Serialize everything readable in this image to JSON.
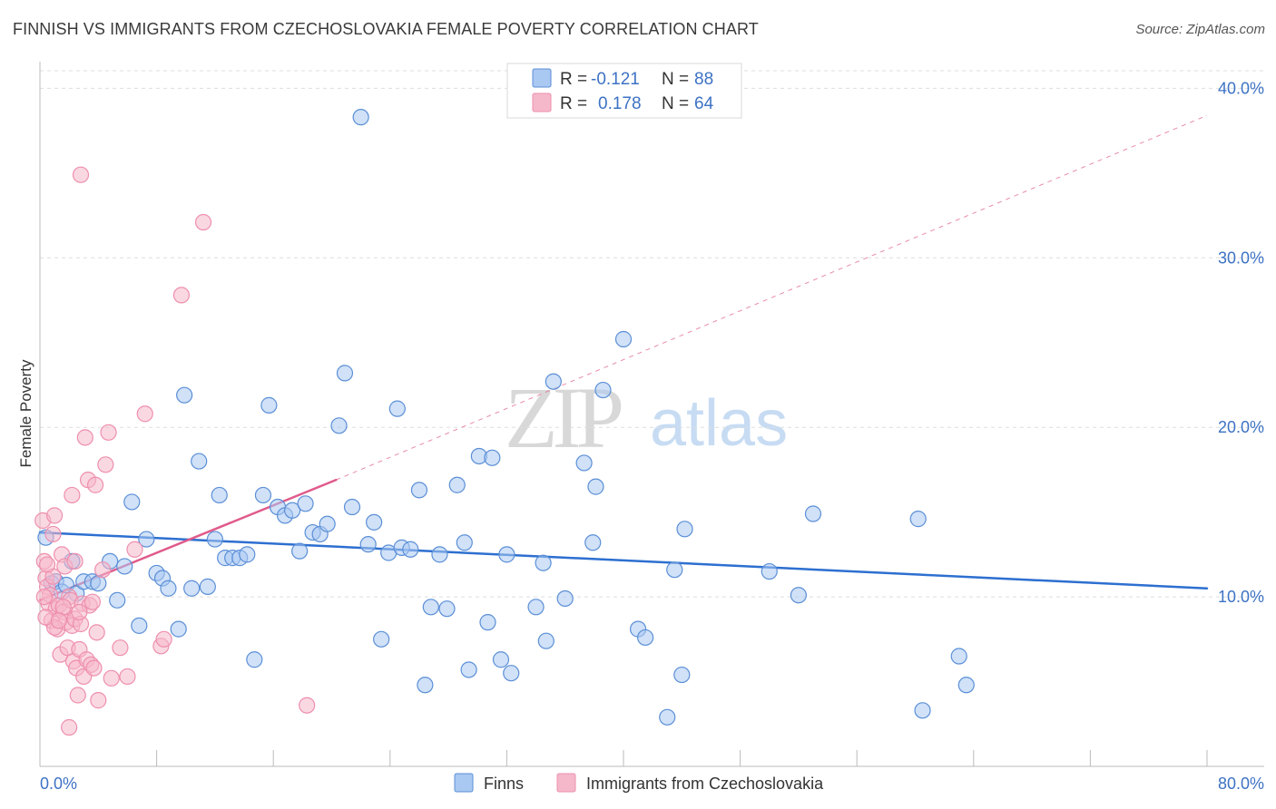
{
  "title": "FINNISH VS IMMIGRANTS FROM CZECHOSLOVAKIA FEMALE POVERTY CORRELATION CHART",
  "source": "Source: ZipAtlas.com",
  "watermark": {
    "zip": "ZIP",
    "atlas": "atlas"
  },
  "legend": {
    "rows": [
      {
        "r_label": "R = ",
        "r_value": "-0.121",
        "n_label": "N = ",
        "n_value": "88",
        "color": "#a9c8f2"
      },
      {
        "r_label": "R = ",
        "r_value": "0.178",
        "n_label": "N = ",
        "n_value": "64",
        "color": "#f5b8cb"
      }
    ]
  },
  "bottom_legend": [
    "Finns",
    "Immigrants from Czechoslovakia"
  ],
  "chart_data": {
    "type": "scatter",
    "title": "FINNISH VS IMMIGRANTS FROM CZECHOSLOVAKIA FEMALE POVERTY CORRELATION CHART",
    "xlabel": "",
    "ylabel": "Female Poverty",
    "xlim": [
      0,
      80
    ],
    "ylim": [
      0,
      42
    ],
    "x_tick_labels": [
      "0.0%",
      "80.0%"
    ],
    "y_ticks": [
      10,
      20,
      30,
      40
    ],
    "y_tick_labels": [
      "10.0%",
      "20.0%",
      "30.0%",
      "40.0%"
    ],
    "grid": "horizontal dashed",
    "series": [
      {
        "name": "Finns",
        "color": "#5b8fd6",
        "fill": "#a9c8f2",
        "trend": {
          "x": [
            0,
            80
          ],
          "y": [
            13.8,
            10.5
          ],
          "color": "#2d6fd0"
        },
        "points": [
          [
            0.4,
            13.5
          ],
          [
            0.8,
            10.8
          ],
          [
            1.1,
            10.9
          ],
          [
            1.5,
            10.3
          ],
          [
            1.8,
            10.7
          ],
          [
            2.2,
            12.1
          ],
          [
            2.5,
            10.2
          ],
          [
            3.0,
            10.9
          ],
          [
            3.6,
            10.9
          ],
          [
            4.0,
            10.8
          ],
          [
            4.8,
            12.1
          ],
          [
            5.3,
            9.8
          ],
          [
            5.8,
            11.8
          ],
          [
            6.3,
            15.6
          ],
          [
            6.8,
            8.3
          ],
          [
            7.3,
            13.4
          ],
          [
            8.0,
            11.4
          ],
          [
            8.4,
            11.1
          ],
          [
            8.8,
            10.5
          ],
          [
            9.5,
            8.1
          ],
          [
            9.9,
            21.9
          ],
          [
            10.4,
            10.5
          ],
          [
            10.9,
            18.0
          ],
          [
            11.5,
            10.6
          ],
          [
            12.0,
            13.4
          ],
          [
            12.3,
            16.0
          ],
          [
            12.7,
            12.3
          ],
          [
            13.2,
            12.3
          ],
          [
            13.7,
            12.3
          ],
          [
            14.2,
            12.5
          ],
          [
            14.7,
            6.3
          ],
          [
            15.3,
            16.0
          ],
          [
            15.7,
            21.3
          ],
          [
            16.3,
            15.3
          ],
          [
            16.8,
            14.8
          ],
          [
            17.3,
            15.1
          ],
          [
            17.8,
            12.7
          ],
          [
            18.2,
            15.5
          ],
          [
            18.7,
            13.8
          ],
          [
            19.2,
            13.7
          ],
          [
            19.7,
            14.3
          ],
          [
            20.5,
            20.1
          ],
          [
            20.9,
            23.2
          ],
          [
            21.4,
            15.3
          ],
          [
            22.0,
            38.3
          ],
          [
            22.5,
            13.1
          ],
          [
            22.9,
            14.4
          ],
          [
            23.4,
            7.5
          ],
          [
            23.9,
            12.6
          ],
          [
            24.5,
            21.1
          ],
          [
            24.8,
            12.9
          ],
          [
            25.4,
            12.8
          ],
          [
            26.0,
            16.3
          ],
          [
            26.4,
            4.8
          ],
          [
            26.8,
            9.4
          ],
          [
            27.4,
            12.5
          ],
          [
            27.9,
            9.3
          ],
          [
            28.6,
            16.6
          ],
          [
            29.1,
            13.2
          ],
          [
            29.4,
            5.7
          ],
          [
            30.1,
            18.3
          ],
          [
            30.7,
            8.5
          ],
          [
            31.0,
            18.2
          ],
          [
            31.6,
            6.3
          ],
          [
            32.0,
            12.5
          ],
          [
            32.3,
            5.5
          ],
          [
            34.0,
            9.4
          ],
          [
            34.5,
            12.0
          ],
          [
            34.7,
            7.4
          ],
          [
            35.2,
            22.7
          ],
          [
            36.0,
            9.9
          ],
          [
            37.3,
            17.9
          ],
          [
            37.9,
            13.2
          ],
          [
            38.1,
            16.5
          ],
          [
            38.6,
            22.2
          ],
          [
            40.0,
            25.2
          ],
          [
            41.0,
            8.1
          ],
          [
            41.5,
            7.6
          ],
          [
            43.5,
            11.6
          ],
          [
            44.0,
            5.4
          ],
          [
            44.2,
            14.0
          ],
          [
            50.0,
            11.5
          ],
          [
            52.0,
            10.1
          ],
          [
            53.0,
            14.9
          ],
          [
            60.2,
            14.6
          ],
          [
            60.5,
            3.3
          ],
          [
            63.0,
            6.5
          ],
          [
            63.5,
            4.8
          ],
          [
            43.0,
            2.9
          ]
        ]
      },
      {
        "name": "Immigrants from Czechoslovakia",
        "color": "#ee8fae",
        "fill": "#f5b8cb",
        "trend": {
          "x": [
            0,
            20.3
          ],
          "y": [
            9.8,
            16.9
          ],
          "color": "#e05a8b",
          "dashed_extension_to": [
            80,
            38.4
          ]
        },
        "points": [
          [
            0.2,
            14.5
          ],
          [
            0.3,
            12.1
          ],
          [
            0.4,
            11.1
          ],
          [
            0.5,
            10.6
          ],
          [
            0.6,
            9.6
          ],
          [
            0.7,
            10.1
          ],
          [
            0.8,
            8.6
          ],
          [
            0.9,
            11.2
          ],
          [
            1.0,
            14.8
          ],
          [
            1.1,
            9.3
          ],
          [
            1.2,
            8.1
          ],
          [
            1.3,
            9.5
          ],
          [
            1.4,
            6.6
          ],
          [
            1.5,
            12.5
          ],
          [
            1.6,
            9.1
          ],
          [
            1.7,
            11.8
          ],
          [
            1.8,
            8.5
          ],
          [
            1.9,
            7.0
          ],
          [
            2.0,
            10.0
          ],
          [
            2.1,
            9.8
          ],
          [
            2.2,
            8.3
          ],
          [
            2.3,
            6.2
          ],
          [
            2.4,
            8.7
          ],
          [
            2.5,
            5.8
          ],
          [
            2.6,
            4.2
          ],
          [
            2.7,
            6.9
          ],
          [
            2.8,
            8.4
          ],
          [
            2.9,
            9.6
          ],
          [
            3.0,
            5.3
          ],
          [
            3.1,
            19.4
          ],
          [
            3.2,
            6.3
          ],
          [
            3.3,
            16.9
          ],
          [
            3.4,
            9.5
          ],
          [
            3.5,
            6.0
          ],
          [
            3.7,
            5.8
          ],
          [
            3.8,
            16.6
          ],
          [
            3.9,
            7.9
          ],
          [
            4.0,
            3.9
          ],
          [
            4.3,
            11.6
          ],
          [
            4.5,
            17.8
          ],
          [
            4.7,
            19.7
          ],
          [
            4.9,
            5.2
          ],
          [
            5.5,
            7.0
          ],
          [
            6.0,
            5.3
          ],
          [
            6.5,
            12.8
          ],
          [
            7.2,
            20.8
          ],
          [
            8.3,
            7.1
          ],
          [
            8.5,
            7.5
          ],
          [
            9.7,
            27.8
          ],
          [
            11.2,
            32.1
          ],
          [
            18.3,
            3.6
          ],
          [
            2.0,
            2.3
          ],
          [
            2.8,
            34.9
          ],
          [
            0.5,
            11.9
          ],
          [
            1.0,
            8.2
          ],
          [
            2.2,
            16.0
          ],
          [
            0.3,
            10.0
          ],
          [
            0.9,
            13.7
          ],
          [
            1.6,
            9.4
          ],
          [
            2.7,
            9.1
          ],
          [
            0.4,
            8.8
          ],
          [
            1.3,
            8.6
          ],
          [
            2.4,
            12.1
          ],
          [
            3.6,
            9.7
          ]
        ]
      }
    ]
  }
}
